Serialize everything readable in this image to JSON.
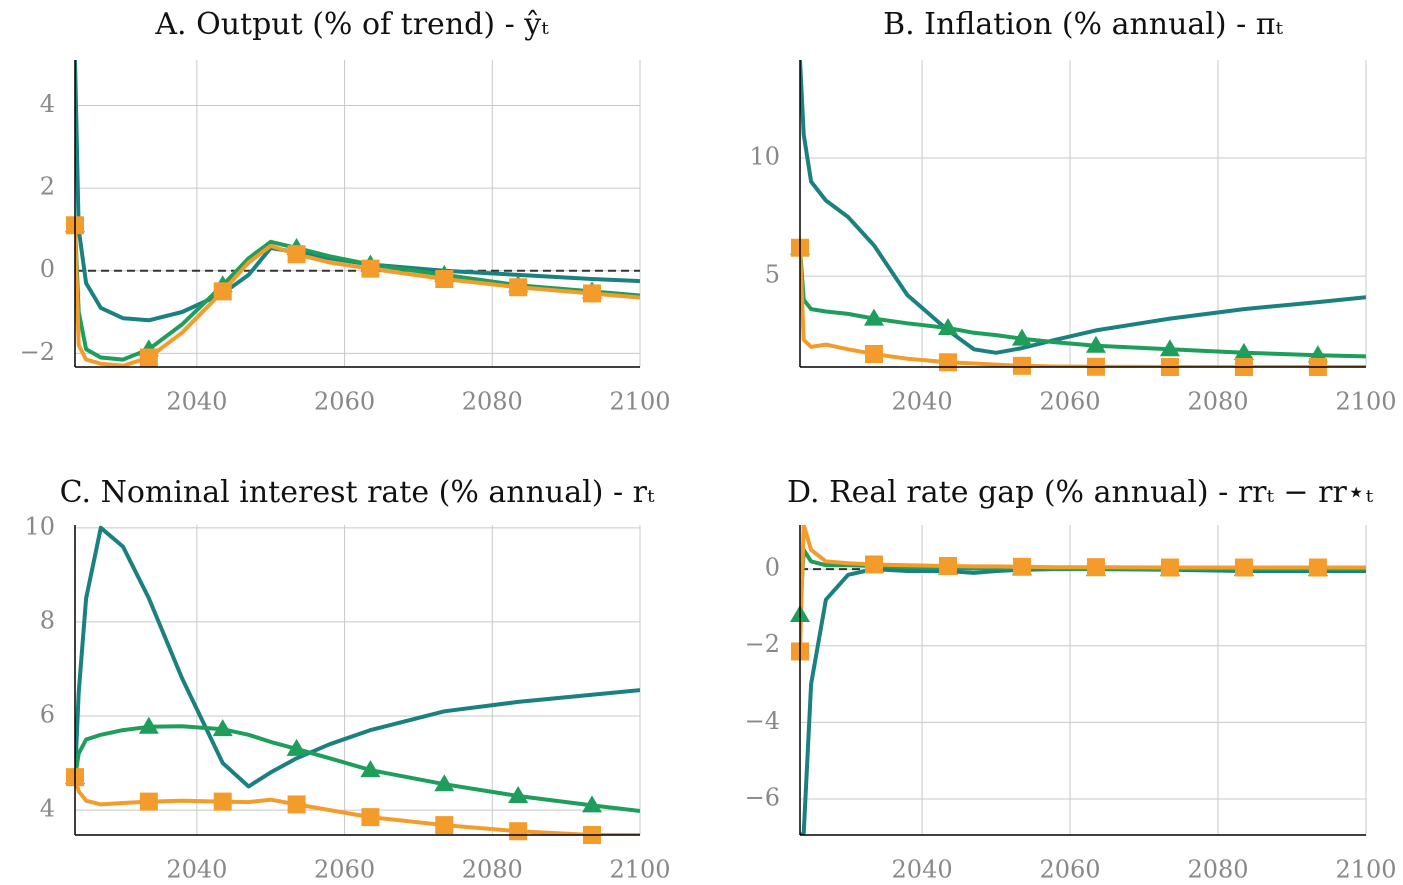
{
  "chart_data": [
    {
      "type": "line",
      "title": "A. Output (% of trend) - ŷₜ",
      "x": [
        2023.5,
        2024,
        2025,
        2027,
        2030,
        2033.5,
        2038,
        2043.5,
        2047,
        2050,
        2053.5,
        2058,
        2063.5,
        2073.5,
        2083.5,
        2093.5,
        2100
      ],
      "xlim": [
        2023.5,
        2100
      ],
      "xticks": [
        2040,
        2060,
        2080,
        2100
      ],
      "ylim": [
        -2.33,
        5.1
      ],
      "yticks": [
        {
          "value": -2,
          "label": "−2"
        },
        0,
        2,
        4
      ],
      "grid": true,
      "reference_line": 0,
      "series": [
        {
          "color": "#1a8080",
          "marker": null,
          "values": [
            5.1,
            1.0,
            -0.3,
            -0.9,
            -1.15,
            -1.2,
            -1.0,
            -0.55,
            -0.1,
            0.55,
            0.45,
            0.3,
            0.15,
            0.0,
            -0.1,
            -0.2,
            -0.25
          ]
        },
        {
          "color": "#1e9e5a",
          "marker": "triangle",
          "values": [
            1.1,
            -1.0,
            -1.9,
            -2.1,
            -2.15,
            -1.9,
            -1.3,
            -0.35,
            0.3,
            0.7,
            0.55,
            0.35,
            0.15,
            -0.1,
            -0.35,
            -0.5,
            -0.6
          ]
        },
        {
          "color": "#f39c2c",
          "marker": "square",
          "values": [
            1.1,
            -1.8,
            -2.15,
            -2.25,
            -2.3,
            -2.1,
            -1.5,
            -0.5,
            0.2,
            0.6,
            0.4,
            0.2,
            0.05,
            -0.2,
            -0.4,
            -0.55,
            -0.65
          ]
        }
      ]
    },
    {
      "type": "line",
      "title": "B. Inflation (% annual) - πₜ",
      "x": [
        2023.5,
        2024,
        2025,
        2027,
        2030,
        2033.5,
        2038,
        2043.5,
        2047,
        2050,
        2053.5,
        2058,
        2063.5,
        2073.5,
        2083.5,
        2093.5,
        2100
      ],
      "xlim": [
        2023.5,
        2100
      ],
      "xticks": [
        2040,
        2060,
        2080,
        2100
      ],
      "ylim": [
        1.15,
        14.15
      ],
      "yticks": [
        5,
        10
      ],
      "grid": true,
      "series": [
        {
          "color": "#1a8080",
          "marker": null,
          "values": [
            14.15,
            11,
            9.0,
            8.2,
            7.5,
            6.3,
            4.2,
            2.7,
            1.9,
            1.75,
            1.95,
            2.3,
            2.7,
            3.2,
            3.6,
            3.9,
            4.1
          ]
        },
        {
          "color": "#1e9e5a",
          "marker": "triangle",
          "values": [
            6.2,
            4.0,
            3.6,
            3.5,
            3.4,
            3.2,
            3.0,
            2.8,
            2.6,
            2.5,
            2.35,
            2.2,
            2.05,
            1.9,
            1.75,
            1.65,
            1.6
          ]
        },
        {
          "color": "#f39c2c",
          "marker": "square",
          "values": [
            6.2,
            2.3,
            2.0,
            2.1,
            1.9,
            1.7,
            1.5,
            1.35,
            1.3,
            1.25,
            1.2,
            1.17,
            1.16,
            1.15,
            1.15,
            1.15,
            1.15
          ]
        }
      ]
    },
    {
      "type": "line",
      "title": "C. Nominal interest rate (% annual) - rₜ",
      "x": [
        2023.5,
        2024,
        2025,
        2027,
        2030,
        2033.5,
        2038,
        2043.5,
        2047,
        2050,
        2053.5,
        2058,
        2063.5,
        2073.5,
        2083.5,
        2093.5,
        2100
      ],
      "xlim": [
        2023.5,
        2100
      ],
      "xticks": [
        2040,
        2060,
        2080,
        2100
      ],
      "ylim": [
        3.47,
        10.06
      ],
      "yticks": [
        4,
        6,
        8,
        10
      ],
      "grid": true,
      "series": [
        {
          "color": "#1a8080",
          "marker": null,
          "values": [
            4.7,
            6.5,
            8.5,
            10.0,
            9.6,
            8.5,
            6.8,
            5.0,
            4.5,
            4.8,
            5.1,
            5.4,
            5.7,
            6.1,
            6.3,
            6.45,
            6.55
          ]
        },
        {
          "color": "#1e9e5a",
          "marker": "triangle",
          "values": [
            4.7,
            5.2,
            5.5,
            5.6,
            5.7,
            5.77,
            5.78,
            5.72,
            5.6,
            5.45,
            5.3,
            5.1,
            4.85,
            4.55,
            4.3,
            4.1,
            3.98
          ]
        },
        {
          "color": "#f39c2c",
          "marker": "square",
          "values": [
            4.7,
            4.4,
            4.2,
            4.12,
            4.15,
            4.18,
            4.2,
            4.18,
            4.17,
            4.22,
            4.12,
            4.0,
            3.85,
            3.68,
            3.55,
            3.47,
            3.47
          ]
        }
      ]
    },
    {
      "type": "line",
      "title": "D. Real rate gap (% annual) - rrₜ − rr⋆ₜ",
      "x": [
        2023.5,
        2024,
        2025,
        2027,
        2030,
        2033.5,
        2038,
        2043.5,
        2047,
        2050,
        2053.5,
        2058,
        2063.5,
        2073.5,
        2083.5,
        2093.5,
        2100
      ],
      "xlim": [
        2023.5,
        2100
      ],
      "xticks": [
        2040,
        2060,
        2080,
        2100
      ],
      "ylim": [
        -6.94,
        1.15
      ],
      "yticks": [
        {
          "value": -6,
          "label": "−6"
        },
        {
          "value": -4,
          "label": "−4"
        },
        {
          "value": -2,
          "label": "−2"
        },
        0
      ],
      "grid": true,
      "reference_line": 0,
      "series": [
        {
          "color": "#1a8080",
          "marker": null,
          "values": [
            -6.94,
            -6.9,
            -3.0,
            -0.8,
            -0.15,
            0.0,
            -0.05,
            -0.05,
            -0.1,
            -0.05,
            -0.02,
            0,
            0,
            -0.02,
            -0.05,
            -0.05,
            -0.05
          ]
        },
        {
          "color": "#1e9e5a",
          "marker": "triangle",
          "values": [
            -1.2,
            0.5,
            0.2,
            0.1,
            0.1,
            0.08,
            0.05,
            0.03,
            0.02,
            0.02,
            0.02,
            0.01,
            0,
            0,
            0,
            0,
            0
          ]
        },
        {
          "color": "#f39c2c",
          "marker": "square",
          "values": [
            -2.15,
            1.15,
            0.5,
            0.2,
            0.15,
            0.12,
            0.1,
            0.08,
            0.07,
            0.07,
            0.06,
            0.05,
            0.05,
            0.04,
            0.04,
            0.04,
            0.04
          ]
        }
      ]
    }
  ]
}
